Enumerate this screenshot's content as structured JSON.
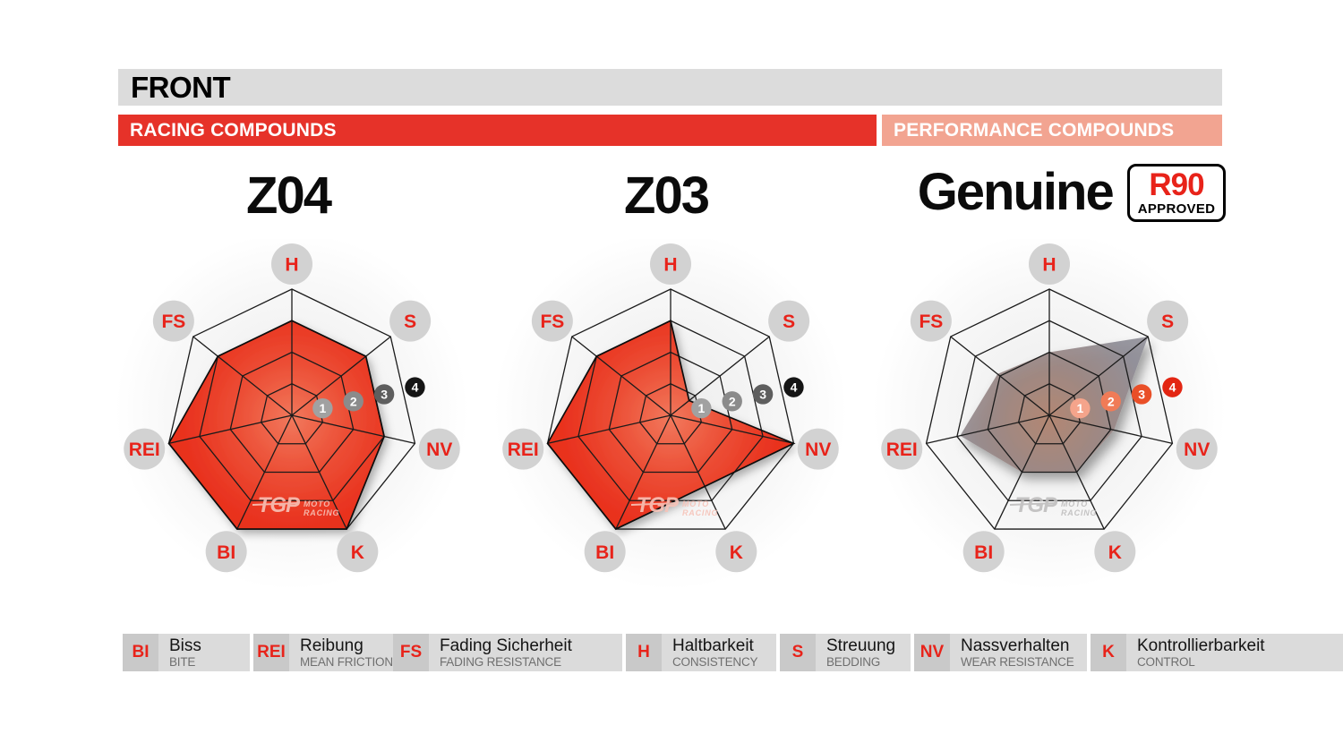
{
  "header": {
    "title": "FRONT",
    "left_band": "RACING COMPOUNDS",
    "right_band": "PERFORMANCE COMPOUNDS"
  },
  "watermark": {
    "tgp": "TGP",
    "line1": "MOTO",
    "line2": "RACING"
  },
  "chart_data": [
    {
      "type": "radar",
      "title": "Z04",
      "group": "racing",
      "axes": [
        "H",
        "S",
        "NV",
        "K",
        "BI",
        "REI",
        "FS"
      ],
      "values": [
        3,
        3,
        3,
        4,
        4,
        4,
        3
      ],
      "max": 4,
      "scale_labels": [
        "1",
        "2",
        "3",
        "4"
      ],
      "style": "red"
    },
    {
      "type": "radar",
      "title": "Z03",
      "group": "racing",
      "axes": [
        "H",
        "S",
        "NV",
        "K",
        "BI",
        "REI",
        "FS"
      ],
      "values": [
        3,
        0.75,
        4,
        2.5,
        4,
        4,
        3
      ],
      "max": 4,
      "scale_labels": [
        "1",
        "2",
        "3",
        "4"
      ],
      "style": "red"
    },
    {
      "type": "radar",
      "title": "Genuine",
      "group": "performance",
      "badge": {
        "line1": "R90",
        "line2": "APPROVED"
      },
      "axes": [
        "H",
        "S",
        "NV",
        "K",
        "BI",
        "REI",
        "FS"
      ],
      "values": [
        2,
        4,
        2.1,
        2,
        2,
        2.9,
        2.1
      ],
      "max": 4,
      "scale_labels": [
        "1",
        "2",
        "3",
        "4"
      ],
      "style": "gray"
    }
  ],
  "legend": [
    {
      "abbr": "BI",
      "de": "Biss",
      "en": "BITE"
    },
    {
      "abbr": "REI",
      "de": "Reibung",
      "en": "MEAN FRICTION"
    },
    {
      "abbr": "FS",
      "de": "Fading Sicherheit",
      "en": "FADING RESISTANCE"
    },
    {
      "abbr": "H",
      "de": "Haltbarkeit",
      "en": "CONSISTENCY"
    },
    {
      "abbr": "S",
      "de": "Streuung",
      "en": "BEDDING"
    },
    {
      "abbr": "NV",
      "de": "Nassverhalten",
      "en": "WEAR RESISTANCE"
    },
    {
      "abbr": "K",
      "de": "Kontrollierbarkeit",
      "en": "CONTROL"
    }
  ],
  "colors": {
    "front_bar_bg": "#dcdcdc",
    "racing_band": "#e63229",
    "performance_band": "#f2a491",
    "accent_red": "#e8231a",
    "axis_circle": "#d2d2d2",
    "axis_text": "#e8231a",
    "grid_line": "#1b1b1b",
    "red_fill_stops": [
      "#f1785c",
      "#ec4f36",
      "#e93420",
      "#e82d1b"
    ],
    "gray_fill_stops": [
      "#b2836e",
      "#9a8581",
      "#8f8d96",
      "#95959e"
    ],
    "scale_badges_racing": [
      "#a1a1a1",
      "#8b8b8b",
      "#5e5e5e",
      "#151515"
    ],
    "scale_badges_performance": [
      "#f5a48b",
      "#f07b57",
      "#e94f27",
      "#e32613"
    ],
    "watermark_on_red": "#f7c3b8",
    "watermark_on_white": "#bfbebe"
  }
}
